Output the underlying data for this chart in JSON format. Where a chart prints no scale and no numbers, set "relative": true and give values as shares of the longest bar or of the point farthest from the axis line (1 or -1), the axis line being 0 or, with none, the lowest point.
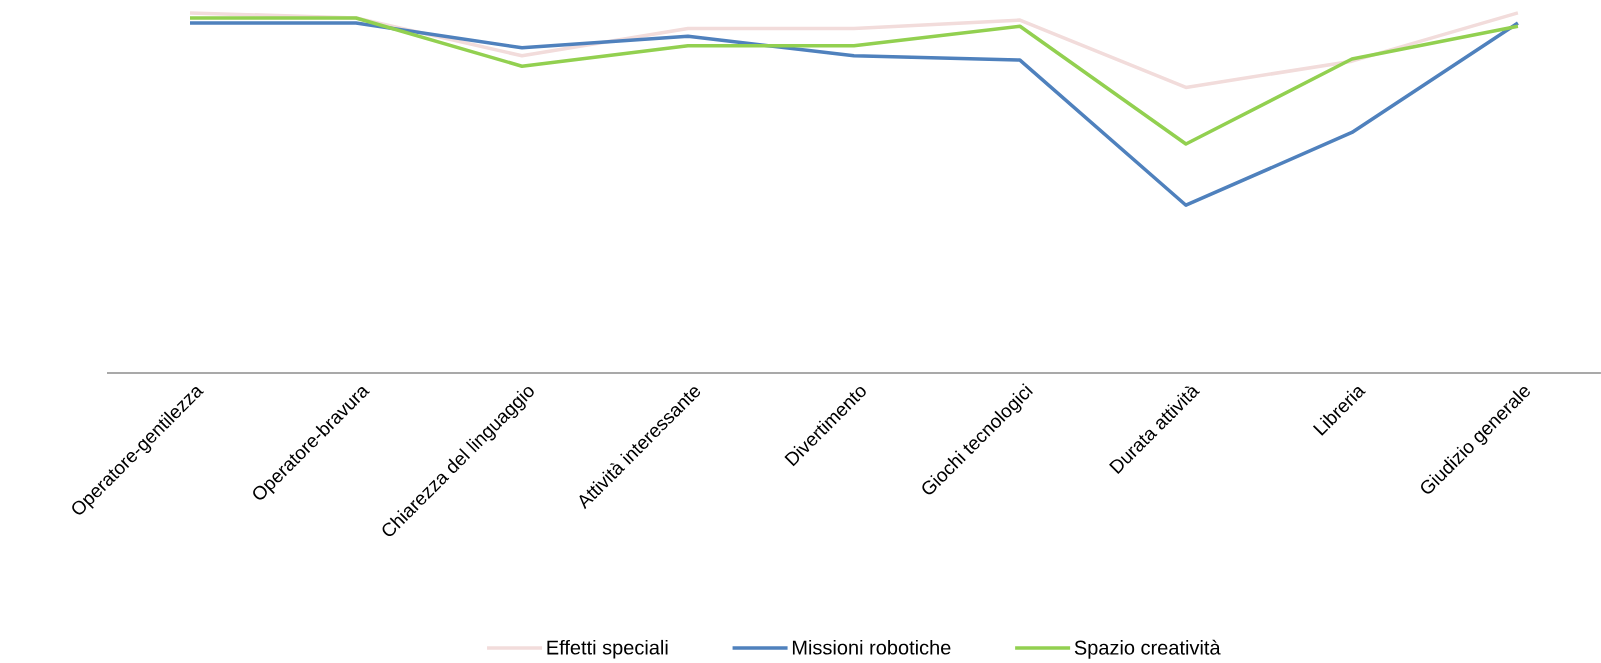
{
  "chart_data": {
    "type": "line",
    "relative": true,
    "legend": "bottom",
    "categories": [
      "Operatore-gentilezza",
      "Operatore-bravura",
      "Chiarezza del linguaggio",
      "Attività interessante",
      "Divertimento",
      "Giochi tecnologici",
      "Durata attività",
      "Libreria",
      "Giudizio generale"
    ],
    "series": [
      {
        "name": "Effetti speciali",
        "color": "#f2dcdb",
        "values": [
          1,
          0.986,
          0.881,
          0.957,
          0.957,
          0.98,
          0.793,
          0.866,
          1
        ]
      },
      {
        "name": "Missioni robotiche",
        "color": "#4f81bd",
        "values": [
          0.972,
          0.972,
          0.903,
          0.935,
          0.881,
          0.869,
          0.466,
          0.668,
          0.972
        ]
      },
      {
        "name": "Spazio creatività",
        "color": "#92d050",
        "values": [
          0.986,
          0.986,
          0.852,
          0.909,
          0.909,
          0.963,
          0.636,
          0.872,
          0.963
        ]
      }
    ]
  }
}
